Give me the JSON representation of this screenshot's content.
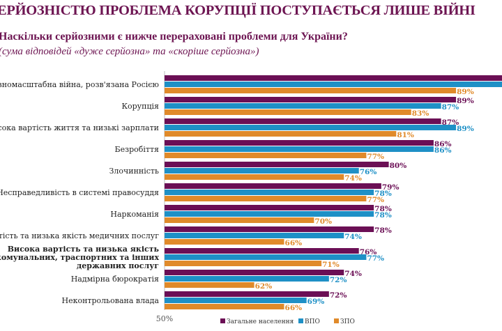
{
  "header": {
    "title": "ЕРЙОЗНІСТЮ ПРОБЛЕМА КОРУПЦІЇ ПОСТУПАЄТЬСЯ ЛИШЕ ВІЙНІ",
    "question": "Наскільки серйозними є нижче перераховані проблеми для України?",
    "subtitle": "(сума відповідей «дуже серйозна» та «скоріше серйозна»)"
  },
  "chart_data": {
    "type": "bar",
    "orientation": "horizontal",
    "title": "Наскільки серйозними є нижче перераховані проблеми для України?",
    "subtitle": "(сума відповідей «дуже серйозна» та «скоріше серйозна»)",
    "xlabel": "",
    "ylabel": "",
    "xlim": [
      50,
      100
    ],
    "x_tick_labels": [
      "50%"
    ],
    "grid": false,
    "legend_position": "bottom-right",
    "categories": [
      [
        "Повномасштабна війна, розв'язана Росією"
      ],
      [
        "Корупція"
      ],
      [
        "Висока вартість життя та низькі зарплати"
      ],
      [
        "Безробіття"
      ],
      [
        "Злочинність"
      ],
      [
        "Несправедливість в системі правосуддя"
      ],
      [
        "Наркоманія"
      ],
      [
        "Висока вартість та низька якість медичних послуг"
      ],
      [
        "Висока вартість та низька якість",
        "житлово-комунальних, траспортних та інших",
        "державних послуг"
      ],
      [
        "Надмірна бюрократія"
      ],
      [
        "Неконтрольована влада"
      ]
    ],
    "series": [
      {
        "name": "Загальне населення",
        "color": "#6b0f55",
        "values": [
          98,
          89,
          87,
          86,
          80,
          79,
          78,
          78,
          76,
          74,
          72
        ],
        "labels": [
          "",
          "89%",
          "87%",
          "86%",
          "80%",
          "79%",
          "78%",
          "78%",
          "76%",
          "74%",
          "72%"
        ]
      },
      {
        "name": "ВПО",
        "color": "#1e90c6",
        "values": [
          97,
          87,
          89,
          86,
          76,
          78,
          78,
          74,
          77,
          72,
          69
        ],
        "labels": [
          "",
          "87%",
          "89%",
          "86%",
          "76%",
          "78%",
          "78%",
          "74%",
          "77%",
          "72%",
          "69%"
        ]
      },
      {
        "name": "ЗПО",
        "color": "#e08a2a",
        "values": [
          89,
          83,
          81,
          77,
          74,
          77,
          70,
          66,
          71,
          62,
          66
        ],
        "labels": [
          "89%",
          "83%",
          "81%",
          "77%",
          "74%",
          "77%",
          "70%",
          "66%",
          "71%",
          "62%",
          "66%"
        ]
      }
    ],
    "bold_categories": [
      8
    ]
  }
}
